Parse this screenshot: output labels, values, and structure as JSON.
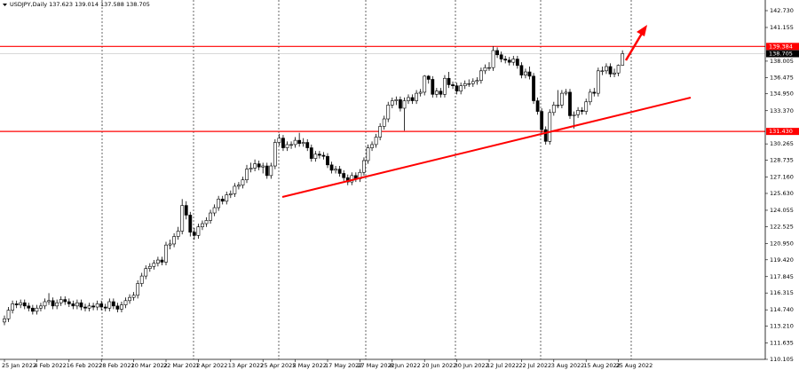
{
  "chart_data": {
    "type": "candlestick",
    "title": "USDJPY,Daily  137.623 139.014 137.588 138.705",
    "colors": {
      "up": "#ffffff",
      "down": "#000000",
      "outline": "#000000",
      "level": "#ff0000",
      "current": "#000000"
    },
    "ylim": [
      110.105,
      142.73
    ],
    "yticks": [
      {
        "value": 142.73,
        "label": "142.730"
      },
      141.155,
      138.005,
      136.475,
      {
        "value": 134.95,
        "label": "134.950"
      },
      {
        "value": 133.37,
        "label": "133.370"
      },
      130.265,
      128.735,
      {
        "value": 127.16,
        "label": "127.160"
      },
      {
        "value": 125.63,
        "label": "125.630"
      },
      124.055,
      122.525,
      {
        "value": 120.95,
        "label": "120.950"
      },
      {
        "value": 119.42,
        "label": "119.420"
      },
      117.845,
      116.315,
      {
        "value": 114.74,
        "label": "114.740"
      },
      {
        "value": 113.21,
        "label": "113.210"
      },
      111.635,
      110.105
    ],
    "levels": [
      139.384,
      {
        "value": 131.43,
        "label": "131.430"
      }
    ],
    "current_price": 138.705,
    "categories": [
      "25 Jan 2022",
      null,
      null,
      null,
      null,
      null,
      null,
      null,
      "4 Feb 2022",
      null,
      null,
      null,
      null,
      null,
      null,
      null,
      "16 Feb 2022",
      null,
      null,
      null,
      null,
      null,
      null,
      null,
      "28 Feb 2022",
      null,
      null,
      null,
      null,
      null,
      null,
      null,
      "10 Mar 2022",
      null,
      null,
      null,
      null,
      null,
      null,
      null,
      "22 Mar 2022",
      null,
      null,
      null,
      null,
      null,
      null,
      null,
      "1 Apr 2022",
      null,
      null,
      null,
      null,
      null,
      null,
      null,
      "13 Apr 2022",
      null,
      null,
      null,
      null,
      null,
      null,
      null,
      "25 Apr 2022",
      null,
      null,
      null,
      null,
      null,
      null,
      null,
      "5 May 2022",
      null,
      null,
      null,
      null,
      null,
      null,
      null,
      "17 May 2022",
      null,
      null,
      null,
      null,
      null,
      null,
      null,
      "27 May 2022",
      null,
      null,
      null,
      null,
      null,
      null,
      null,
      "8 Jun 2022",
      null,
      null,
      null,
      null,
      null,
      null,
      null,
      "20 Jun 2022",
      null,
      null,
      null,
      null,
      null,
      null,
      null,
      "30 Jun 2022",
      null,
      null,
      null,
      null,
      null,
      null,
      null,
      "12 Jul 2022",
      null,
      null,
      null,
      null,
      null,
      null,
      null,
      "22 Jul 2022",
      null,
      null,
      null,
      null,
      null,
      null,
      null,
      "3 Aug 2022",
      null,
      null,
      null,
      null,
      null,
      null,
      null,
      "15 Aug 2022",
      null,
      null,
      null,
      null,
      null,
      null,
      null,
      "25 Aug 2022",
      null
    ],
    "candles": [
      [
        113.6,
        114.2,
        113.3,
        113.9
      ],
      [
        113.9,
        115.0,
        113.6,
        114.7
      ],
      [
        114.7,
        115.6,
        114.4,
        115.3
      ],
      [
        115.3,
        115.6,
        114.9,
        115.2
      ],
      [
        115.2,
        115.7,
        114.9,
        115.4
      ],
      [
        115.4,
        115.7,
        114.8,
        115.1
      ],
      [
        115.1,
        115.4,
        114.6,
        114.9
      ],
      [
        114.9,
        115.2,
        114.3,
        114.6
      ],
      [
        114.6,
        115.2,
        114.3,
        114.9
      ],
      [
        114.9,
        115.4,
        114.6,
        115.1
      ],
      [
        115.1,
        115.8,
        114.8,
        115.5
      ],
      [
        115.5,
        116.3,
        115.2,
        115.6
      ],
      [
        115.6,
        115.9,
        114.8,
        115.1
      ],
      [
        115.1,
        115.7,
        114.8,
        115.4
      ],
      [
        115.4,
        116.0,
        115.1,
        115.7
      ],
      [
        115.7,
        116.0,
        115.2,
        115.5
      ],
      [
        115.5,
        115.8,
        115.0,
        115.3
      ],
      [
        115.3,
        115.6,
        114.8,
        115.1
      ],
      [
        115.1,
        115.7,
        114.8,
        115.4
      ],
      [
        115.4,
        115.7,
        114.7,
        115.0
      ],
      [
        115.0,
        115.3,
        114.6,
        114.9
      ],
      [
        114.9,
        115.4,
        114.6,
        115.1
      ],
      [
        115.1,
        115.4,
        114.7,
        115.0
      ],
      [
        115.0,
        115.6,
        114.7,
        115.3
      ],
      [
        115.3,
        115.6,
        114.7,
        115.0
      ],
      [
        115.0,
        115.3,
        114.6,
        114.9
      ],
      [
        114.9,
        115.8,
        114.6,
        115.5
      ],
      [
        115.5,
        115.8,
        114.8,
        115.1
      ],
      [
        115.1,
        115.4,
        114.5,
        114.8
      ],
      [
        114.8,
        115.5,
        114.5,
        115.2
      ],
      [
        115.2,
        115.9,
        114.9,
        115.6
      ],
      [
        115.6,
        116.2,
        115.3,
        115.9
      ],
      [
        115.9,
        116.4,
        115.6,
        116.1
      ],
      [
        116.1,
        117.5,
        115.8,
        117.2
      ],
      [
        117.2,
        118.2,
        116.9,
        117.9
      ],
      [
        117.9,
        118.9,
        117.6,
        118.6
      ],
      [
        118.6,
        119.1,
        118.3,
        118.8
      ],
      [
        118.8,
        119.4,
        118.5,
        119.1
      ],
      [
        119.1,
        119.7,
        118.8,
        119.4
      ],
      [
        119.4,
        119.7,
        118.9,
        119.2
      ],
      [
        119.2,
        121.1,
        118.9,
        120.8
      ],
      [
        120.8,
        121.3,
        120.4,
        120.9
      ],
      [
        120.9,
        121.9,
        120.6,
        121.6
      ],
      [
        121.6,
        122.5,
        121.3,
        122.1
      ],
      [
        122.1,
        125.1,
        121.8,
        124.5
      ],
      [
        124.5,
        124.9,
        123.2,
        123.6
      ],
      [
        123.6,
        123.9,
        121.6,
        122.0
      ],
      [
        122.0,
        122.4,
        121.3,
        121.7
      ],
      [
        121.7,
        122.8,
        121.4,
        122.5
      ],
      [
        122.5,
        123.1,
        122.2,
        122.8
      ],
      [
        122.8,
        123.4,
        122.5,
        123.1
      ],
      [
        123.1,
        124.1,
        122.8,
        123.8
      ],
      [
        123.8,
        124.6,
        123.5,
        124.3
      ],
      [
        124.3,
        125.4,
        124.0,
        125.1
      ],
      [
        125.1,
        125.4,
        124.6,
        124.9
      ],
      [
        124.9,
        125.8,
        124.6,
        125.5
      ],
      [
        125.5,
        125.9,
        125.2,
        125.6
      ],
      [
        125.6,
        126.6,
        125.3,
        126.3
      ],
      [
        126.3,
        126.7,
        126.0,
        126.4
      ],
      [
        126.4,
        127.2,
        126.1,
        126.9
      ],
      [
        126.9,
        128.3,
        126.6,
        127.9
      ],
      [
        127.9,
        128.5,
        127.6,
        128.0
      ],
      [
        128.0,
        128.8,
        127.7,
        128.4
      ],
      [
        128.4,
        128.7,
        127.8,
        128.1
      ],
      [
        128.1,
        128.5,
        127.5,
        128.2
      ],
      [
        128.2,
        128.5,
        127.0,
        127.3
      ],
      [
        127.3,
        128.5,
        127.0,
        128.2
      ],
      [
        128.2,
        130.7,
        127.9,
        130.4
      ],
      [
        130.4,
        131.2,
        130.1,
        130.8
      ],
      [
        130.8,
        131.1,
        129.6,
        129.9
      ],
      [
        129.9,
        130.5,
        129.6,
        130.2
      ],
      [
        130.2,
        130.5,
        129.8,
        130.2
      ],
      [
        130.2,
        130.9,
        129.9,
        130.6
      ],
      [
        130.6,
        131.3,
        130.0,
        130.3
      ],
      [
        130.3,
        130.8,
        130.0,
        130.4
      ],
      [
        130.4,
        130.7,
        129.6,
        129.9
      ],
      [
        129.9,
        130.2,
        128.6,
        128.9
      ],
      [
        128.9,
        129.6,
        128.6,
        129.3
      ],
      [
        129.3,
        129.6,
        128.9,
        129.2
      ],
      [
        129.2,
        129.5,
        128.8,
        129.1
      ],
      [
        129.1,
        129.4,
        128.0,
        128.3
      ],
      [
        128.3,
        128.6,
        127.5,
        127.8
      ],
      [
        127.8,
        128.2,
        127.5,
        127.9
      ],
      [
        127.9,
        128.2,
        127.2,
        127.5
      ],
      [
        127.5,
        127.8,
        126.8,
        127.1
      ],
      [
        127.1,
        127.4,
        126.4,
        126.7
      ],
      [
        126.7,
        127.6,
        126.4,
        127.3
      ],
      [
        127.3,
        127.6,
        126.7,
        127.0
      ],
      [
        127.0,
        127.9,
        126.7,
        127.6
      ],
      [
        127.6,
        129.0,
        127.3,
        128.7
      ],
      [
        128.7,
        130.2,
        128.4,
        129.9
      ],
      [
        129.9,
        130.5,
        129.6,
        130.2
      ],
      [
        130.2,
        131.2,
        129.9,
        130.9
      ],
      [
        130.9,
        132.2,
        130.6,
        131.9
      ],
      [
        131.9,
        132.9,
        131.6,
        132.6
      ],
      [
        132.6,
        134.2,
        132.3,
        133.9
      ],
      [
        133.9,
        134.6,
        133.6,
        134.3
      ],
      [
        134.3,
        134.7,
        133.9,
        134.4
      ],
      [
        134.4,
        134.7,
        133.3,
        133.6
      ],
      [
        133.6,
        134.6,
        131.5,
        134.3
      ],
      [
        134.3,
        134.9,
        134.0,
        134.6
      ],
      [
        134.6,
        134.9,
        134.0,
        134.3
      ],
      [
        134.3,
        135.3,
        134.0,
        135.0
      ],
      [
        135.0,
        135.4,
        134.7,
        135.1
      ],
      [
        135.1,
        136.7,
        134.8,
        136.6
      ],
      [
        136.6,
        136.7,
        135.9,
        136.3
      ],
      [
        136.3,
        136.6,
        134.6,
        134.9
      ],
      [
        134.9,
        135.5,
        134.6,
        135.2
      ],
      [
        135.2,
        135.5,
        134.6,
        134.9
      ],
      [
        134.9,
        136.7,
        134.6,
        136.4
      ],
      [
        136.4,
        137.0,
        135.5,
        135.8
      ],
      [
        135.8,
        136.1,
        135.4,
        135.7
      ],
      [
        135.7,
        136.0,
        134.9,
        135.2
      ],
      [
        135.2,
        136.0,
        134.9,
        135.7
      ],
      [
        135.7,
        136.2,
        135.4,
        135.9
      ],
      [
        135.9,
        136.3,
        135.6,
        135.9
      ],
      [
        135.9,
        136.4,
        135.6,
        136.1
      ],
      [
        136.1,
        136.5,
        135.8,
        136.2
      ],
      [
        136.2,
        137.4,
        135.9,
        137.1
      ],
      [
        137.1,
        137.7,
        136.8,
        137.4
      ],
      [
        137.4,
        137.9,
        137.1,
        137.4
      ],
      [
        137.4,
        139.4,
        137.1,
        139.0
      ],
      [
        139.0,
        139.3,
        138.3,
        138.6
      ],
      [
        138.6,
        138.9,
        137.9,
        138.2
      ],
      [
        138.2,
        138.5,
        137.8,
        138.1
      ],
      [
        138.1,
        138.4,
        137.6,
        137.9
      ],
      [
        137.9,
        138.5,
        137.6,
        138.2
      ],
      [
        138.2,
        138.5,
        137.3,
        137.6
      ],
      [
        137.6,
        137.9,
        136.4,
        136.7
      ],
      [
        136.7,
        137.3,
        136.4,
        137.0
      ],
      [
        137.0,
        137.5,
        136.3,
        136.6
      ],
      [
        136.6,
        136.9,
        134.0,
        134.3
      ],
      [
        134.3,
        134.6,
        133.0,
        133.3
      ],
      [
        133.3,
        133.6,
        131.3,
        131.6
      ],
      [
        131.6,
        131.9,
        130.2,
        130.5
      ],
      [
        130.5,
        133.5,
        130.2,
        133.2
      ],
      [
        133.2,
        134.2,
        132.9,
        133.9
      ],
      [
        133.9,
        135.3,
        133.6,
        133.9
      ],
      [
        133.9,
        135.3,
        133.6,
        135.0
      ],
      [
        135.0,
        135.4,
        134.8,
        135.1
      ],
      [
        135.1,
        135.4,
        132.6,
        132.9
      ],
      [
        132.9,
        133.3,
        131.7,
        133.0
      ],
      [
        133.0,
        133.7,
        132.7,
        133.4
      ],
      [
        133.4,
        133.7,
        133.0,
        133.3
      ],
      [
        133.3,
        134.5,
        133.0,
        134.2
      ],
      [
        134.2,
        135.4,
        133.9,
        135.1
      ],
      [
        135.1,
        135.5,
        134.7,
        135.0
      ],
      [
        135.0,
        137.4,
        134.7,
        137.1
      ],
      [
        137.1,
        137.5,
        136.7,
        137.1
      ],
      [
        137.1,
        137.8,
        136.8,
        137.5
      ],
      [
        137.5,
        137.8,
        136.5,
        136.8
      ],
      [
        136.8,
        137.3,
        136.5,
        136.9
      ],
      [
        136.9,
        137.7,
        136.6,
        137.62
      ],
      [
        137.623,
        139.014,
        137.588,
        138.705
      ]
    ]
  }
}
